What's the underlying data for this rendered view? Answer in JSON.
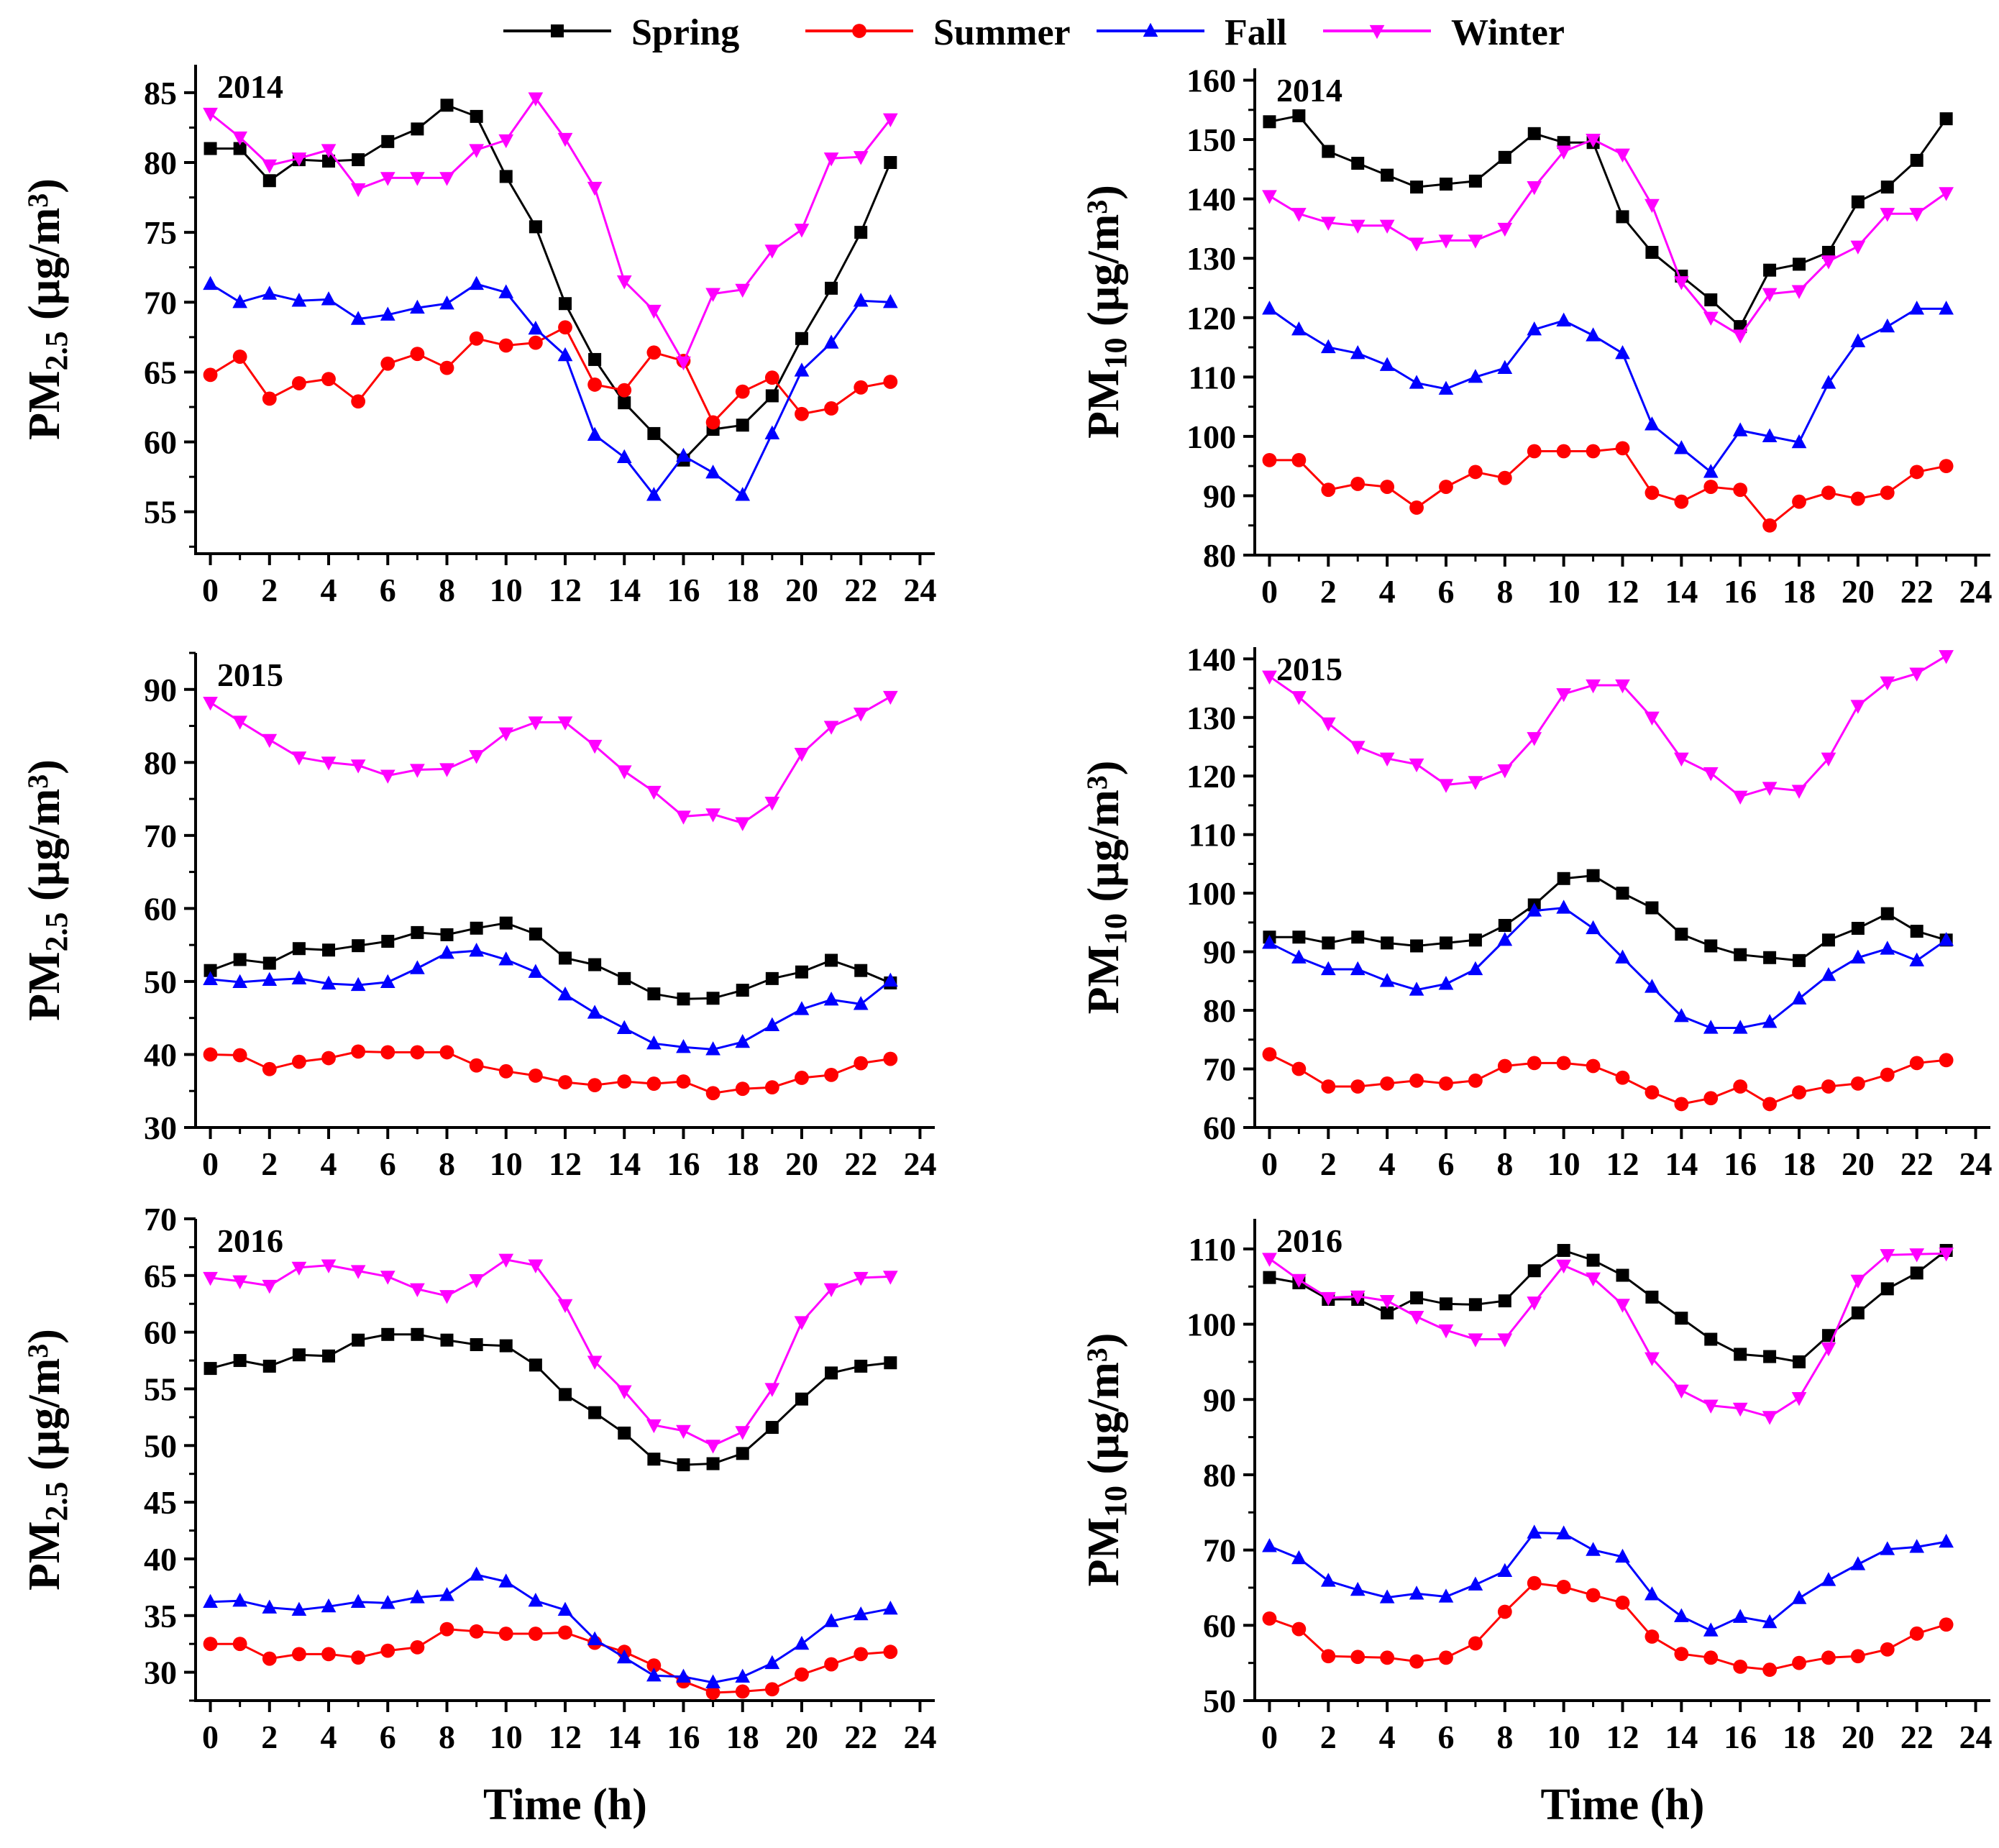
{
  "legend": [
    {
      "label": "Spring",
      "color": "#000000",
      "marker": "square"
    },
    {
      "label": "Summer",
      "color": "#ff0000",
      "marker": "circle"
    },
    {
      "label": "Fall",
      "color": "#0000ff",
      "marker": "triangle-up"
    },
    {
      "label": "Winter",
      "color": "#ff00ff",
      "marker": "triangle-down"
    }
  ],
  "chart_data": [
    {
      "type": "line",
      "title": "2014",
      "xlabel": "Time (h)",
      "ylabel": "PM2.5 (µg/m3)",
      "ylabel_parts": {
        "main": "PM",
        "sub": "2.5",
        "unit": "(µg/m",
        "sup": "3",
        "close": ")"
      },
      "xlim": [
        -0.5,
        24.5
      ],
      "ylim": [
        52,
        87
      ],
      "xticks": [
        0,
        2,
        4,
        6,
        8,
        10,
        12,
        14,
        16,
        18,
        20,
        22,
        24
      ],
      "yticks": [
        55,
        60,
        65,
        70,
        75,
        80,
        85
      ],
      "x": [
        0,
        1,
        2,
        3,
        4,
        5,
        6,
        7,
        8,
        9,
        10,
        11,
        12,
        13,
        14,
        15,
        16,
        17,
        18,
        19,
        20,
        21,
        22,
        23
      ],
      "series": [
        {
          "name": "Spring",
          "values": [
            81.0,
            81.0,
            78.7,
            80.2,
            80.1,
            80.2,
            81.5,
            82.4,
            84.1,
            83.3,
            79.0,
            75.4,
            69.9,
            65.9,
            62.8,
            60.6,
            58.7,
            60.9,
            61.2,
            63.3,
            67.4,
            71.0,
            75.0,
            80.0
          ]
        },
        {
          "name": "Summer",
          "values": [
            64.8,
            66.1,
            63.1,
            64.2,
            64.5,
            62.9,
            65.6,
            66.3,
            65.3,
            67.4,
            66.9,
            67.1,
            68.2,
            64.1,
            63.7,
            66.4,
            65.8,
            61.4,
            63.6,
            64.6,
            62.0,
            62.4,
            63.9,
            64.3
          ]
        },
        {
          "name": "Fall",
          "values": [
            71.3,
            70.0,
            70.6,
            70.1,
            70.2,
            68.8,
            69.1,
            69.6,
            69.9,
            71.3,
            70.7,
            68.1,
            66.2,
            60.5,
            58.9,
            56.2,
            59.0,
            57.8,
            56.2,
            60.6,
            65.1,
            67.1,
            70.1,
            70.0
          ]
        },
        {
          "name": "Winter",
          "values": [
            83.5,
            81.8,
            79.8,
            80.3,
            80.9,
            78.1,
            78.9,
            78.9,
            78.9,
            80.9,
            81.6,
            84.6,
            81.7,
            78.2,
            71.5,
            69.4,
            65.7,
            70.6,
            70.9,
            73.7,
            75.2,
            80.3,
            80.4,
            83.1
          ]
        }
      ]
    },
    {
      "type": "line",
      "title": "2014",
      "xlabel": "Time (h)",
      "ylabel": "PM10 (µg/m3)",
      "ylabel_parts": {
        "main": "PM",
        "sub": "10",
        "unit": "(µg/m",
        "sup": "3",
        "close": ")"
      },
      "xlim": [
        -0.5,
        24.5
      ],
      "ylim": [
        80,
        162
      ],
      "xticks": [
        0,
        2,
        4,
        6,
        8,
        10,
        12,
        14,
        16,
        18,
        20,
        22,
        24
      ],
      "yticks": [
        80,
        90,
        100,
        110,
        120,
        130,
        140,
        150,
        160
      ],
      "x": [
        0,
        1,
        2,
        3,
        4,
        5,
        6,
        7,
        8,
        9,
        10,
        11,
        12,
        13,
        14,
        15,
        16,
        17,
        18,
        19,
        20,
        21,
        22,
        23
      ],
      "series": [
        {
          "name": "Spring",
          "values": [
            153,
            154,
            148,
            146,
            144,
            142,
            142.5,
            143,
            147,
            151,
            149.5,
            149.5,
            137,
            131,
            127,
            123,
            118.5,
            128,
            129,
            131,
            139.5,
            142,
            146.5,
            153.5
          ]
        },
        {
          "name": "Summer",
          "values": [
            96,
            96,
            91,
            92,
            91.5,
            88,
            91.5,
            94,
            93,
            97.5,
            97.5,
            97.5,
            98,
            90.5,
            89,
            91.5,
            91,
            85,
            89,
            90.5,
            89.5,
            90.5,
            94,
            95
          ]
        },
        {
          "name": "Fall",
          "values": [
            121.5,
            118,
            115,
            114,
            112,
            109,
            108,
            110,
            111.5,
            118,
            119.5,
            117,
            114,
            102,
            98,
            94,
            101,
            100,
            99,
            109,
            116,
            118.5,
            121.5,
            121.5
          ]
        },
        {
          "name": "Winter",
          "values": [
            140.5,
            137.5,
            136,
            135.5,
            135.5,
            132.5,
            133,
            133,
            135,
            142,
            148,
            150,
            147.5,
            139,
            126,
            120,
            117,
            124,
            124.5,
            129.5,
            132,
            137.5,
            137.5,
            141
          ]
        }
      ]
    },
    {
      "type": "line",
      "title": "2015",
      "xlabel": "Time (h)",
      "ylabel": "PM2.5 (µg/m3)",
      "ylabel_parts": {
        "main": "PM",
        "sub": "2.5",
        "unit": "(µg/m",
        "sup": "3",
        "close": ")"
      },
      "xlim": [
        -0.5,
        24.5
      ],
      "ylim": [
        30,
        95
      ],
      "xticks": [
        0,
        2,
        4,
        6,
        8,
        10,
        12,
        14,
        16,
        18,
        20,
        22,
        24
      ],
      "yticks": [
        30,
        40,
        50,
        60,
        70,
        80,
        90
      ],
      "x": [
        0,
        1,
        2,
        3,
        4,
        5,
        6,
        7,
        8,
        9,
        10,
        11,
        12,
        13,
        14,
        15,
        16,
        17,
        18,
        19,
        20,
        21,
        22,
        23
      ],
      "series": [
        {
          "name": "Spring",
          "values": [
            51.5,
            53,
            52.5,
            54.5,
            54.3,
            54.9,
            55.5,
            56.7,
            56.4,
            57.3,
            58,
            56.5,
            53.2,
            52.3,
            50.4,
            48.3,
            47.6,
            47.7,
            48.8,
            50.4,
            51.3,
            52.9,
            51.5,
            49.8
          ]
        },
        {
          "name": "Summer",
          "values": [
            40,
            39.9,
            38,
            39,
            39.5,
            40.4,
            40.3,
            40.3,
            40.3,
            38.5,
            37.7,
            37.1,
            36.2,
            35.8,
            36.3,
            36,
            36.3,
            34.7,
            35.3,
            35.5,
            36.8,
            37.2,
            38.8,
            39.4
          ]
        },
        {
          "name": "Fall",
          "values": [
            50.3,
            49.9,
            50.2,
            50.4,
            49.7,
            49.5,
            49.9,
            51.8,
            53.9,
            54.2,
            53,
            51.3,
            48.2,
            45.7,
            43.6,
            41.5,
            41,
            40.7,
            41.7,
            44,
            46.2,
            47.5,
            46.9,
            50.1
          ]
        },
        {
          "name": "Winter",
          "values": [
            88.2,
            85.6,
            83.1,
            80.7,
            80,
            79.6,
            78.2,
            79,
            79.1,
            80.9,
            84,
            85.5,
            85.5,
            82.3,
            78.8,
            76,
            72.6,
            72.9,
            71.7,
            74.5,
            81.2,
            84.9,
            86.7,
            89
          ]
        }
      ]
    },
    {
      "type": "line",
      "title": "2015",
      "xlabel": "Time (h)",
      "ylabel": "PM10 (µg/m3)",
      "ylabel_parts": {
        "main": "PM",
        "sub": "10",
        "unit": "(µg/m",
        "sup": "3",
        "close": ")"
      },
      "xlim": [
        -0.5,
        24.5
      ],
      "ylim": [
        60,
        142
      ],
      "xticks": [
        0,
        2,
        4,
        6,
        8,
        10,
        12,
        14,
        16,
        18,
        20,
        22,
        24
      ],
      "yticks": [
        60,
        70,
        80,
        90,
        100,
        110,
        120,
        130,
        140
      ],
      "x": [
        0,
        1,
        2,
        3,
        4,
        5,
        6,
        7,
        8,
        9,
        10,
        11,
        12,
        13,
        14,
        15,
        16,
        17,
        18,
        19,
        20,
        21,
        22,
        23
      ],
      "series": [
        {
          "name": "Spring",
          "values": [
            92.5,
            92.5,
            91.5,
            92.5,
            91.5,
            91,
            91.5,
            92,
            94.5,
            98,
            102.5,
            103,
            100,
            97.5,
            93,
            91,
            89.5,
            89,
            88.5,
            92,
            94,
            96.5,
            93.5,
            92
          ]
        },
        {
          "name": "Summer",
          "values": [
            72.5,
            70,
            67,
            67,
            67.5,
            68,
            67.5,
            68,
            70.5,
            71,
            71,
            70.5,
            68.5,
            66,
            64,
            65,
            67,
            64,
            66,
            67,
            67.5,
            69,
            71,
            71.5
          ]
        },
        {
          "name": "Fall",
          "values": [
            91.5,
            89,
            87,
            87,
            85,
            83.5,
            84.5,
            87,
            92,
            97,
            97.5,
            94,
            89,
            84,
            79,
            77,
            77,
            78,
            82,
            86,
            89,
            90.5,
            88.5,
            92
          ]
        },
        {
          "name": "Winter",
          "values": [
            137,
            133.5,
            129,
            125,
            123,
            122,
            118.5,
            119,
            121,
            126.5,
            134,
            135.5,
            135.5,
            130,
            123,
            120.5,
            116.5,
            118,
            117.5,
            123,
            132,
            136,
            137.5,
            140.5
          ]
        }
      ]
    },
    {
      "type": "line",
      "title": "2016",
      "xlabel": "Time (h)",
      "ylabel": "PM2.5 (µg/m3)",
      "ylabel_parts": {
        "main": "PM",
        "sub": "2.5",
        "unit": "(µg/m",
        "sup": "3",
        "close": ")"
      },
      "xlim": [
        -0.5,
        24.5
      ],
      "ylim": [
        27.5,
        70
      ],
      "xticks": [
        0,
        2,
        4,
        6,
        8,
        10,
        12,
        14,
        16,
        18,
        20,
        22,
        24
      ],
      "yticks": [
        30,
        35,
        40,
        45,
        50,
        55,
        60,
        65,
        70
      ],
      "x": [
        0,
        1,
        2,
        3,
        4,
        5,
        6,
        7,
        8,
        9,
        10,
        11,
        12,
        13,
        14,
        15,
        16,
        17,
        18,
        19,
        20,
        21,
        22,
        23
      ],
      "series": [
        {
          "name": "Spring",
          "values": [
            56.8,
            57.5,
            57,
            58,
            57.9,
            59.3,
            59.8,
            59.8,
            59.3,
            58.9,
            58.8,
            57.1,
            54.5,
            52.9,
            51.1,
            48.8,
            48.3,
            48.4,
            49.3,
            51.6,
            54.1,
            56.4,
            57,
            57.3
          ]
        },
        {
          "name": "Summer",
          "values": [
            32.5,
            32.5,
            31.2,
            31.6,
            31.6,
            31.3,
            31.9,
            32.2,
            33.8,
            33.6,
            33.4,
            33.4,
            33.5,
            32.6,
            31.8,
            30.6,
            29.2,
            28.2,
            28.3,
            28.5,
            29.8,
            30.7,
            31.6,
            31.8
          ]
        },
        {
          "name": "Fall",
          "values": [
            36.2,
            36.3,
            35.7,
            35.5,
            35.8,
            36.2,
            36.1,
            36.6,
            36.8,
            38.6,
            38,
            36.3,
            35.5,
            32.9,
            31.3,
            29.7,
            29.6,
            29.1,
            29.6,
            30.8,
            32.5,
            34.5,
            35.1,
            35.6
          ]
        },
        {
          "name": "Winter",
          "values": [
            64.8,
            64.5,
            64.1,
            65.7,
            65.9,
            65.4,
            64.9,
            63.8,
            63.2,
            64.6,
            66.4,
            65.9,
            62.4,
            57.4,
            54.8,
            51.8,
            51.3,
            50,
            51.2,
            55,
            60.9,
            63.8,
            64.8,
            64.9
          ]
        }
      ]
    },
    {
      "type": "line",
      "title": "2016",
      "xlabel": "Time (h)",
      "ylabel": "PM10 (µg/m3)",
      "ylabel_parts": {
        "main": "PM",
        "sub": "10",
        "unit": "(µg/m",
        "sup": "3",
        "close": ")"
      },
      "xlim": [
        -0.5,
        24.5
      ],
      "ylim": [
        50,
        114
      ],
      "xticks": [
        0,
        2,
        4,
        6,
        8,
        10,
        12,
        14,
        16,
        18,
        20,
        22,
        24
      ],
      "yticks": [
        50,
        60,
        70,
        80,
        90,
        100,
        110
      ],
      "x": [
        0,
        1,
        2,
        3,
        4,
        5,
        6,
        7,
        8,
        9,
        10,
        11,
        12,
        13,
        14,
        15,
        16,
        17,
        18,
        19,
        20,
        21,
        22,
        23
      ],
      "series": [
        {
          "name": "Spring",
          "values": [
            106.2,
            105.5,
            103.3,
            103.3,
            101.5,
            103.5,
            102.7,
            102.6,
            103.1,
            107.1,
            109.8,
            108.5,
            106.5,
            103.6,
            100.8,
            98,
            96,
            95.7,
            95,
            98.5,
            101.5,
            104.7,
            106.8,
            109.8
          ]
        },
        {
          "name": "Summer",
          "values": [
            60.9,
            59.5,
            55.9,
            55.8,
            55.7,
            55.2,
            55.7,
            57.6,
            61.8,
            65.6,
            65.1,
            64,
            63,
            58.5,
            56.2,
            55.7,
            54.5,
            54.1,
            55,
            55.7,
            55.9,
            56.8,
            58.9,
            60.1
          ]
        },
        {
          "name": "Fall",
          "values": [
            70.5,
            68.9,
            65.9,
            64.7,
            63.7,
            64.2,
            63.8,
            65.4,
            67.2,
            72.3,
            72.2,
            70,
            69.1,
            64.1,
            61.2,
            59.3,
            61.1,
            60.4,
            63.6,
            66,
            68.1,
            70.1,
            70.4,
            71.1
          ]
        },
        {
          "name": "Winter",
          "values": [
            108.7,
            105.9,
            103.5,
            103.7,
            103.1,
            101,
            99.2,
            98,
            98,
            102.9,
            107.8,
            106.1,
            102.6,
            95.5,
            91.2,
            89.2,
            88.8,
            87.7,
            90.2,
            96.8,
            105.8,
            109.2,
            109.3,
            109.4
          ]
        }
      ]
    }
  ]
}
